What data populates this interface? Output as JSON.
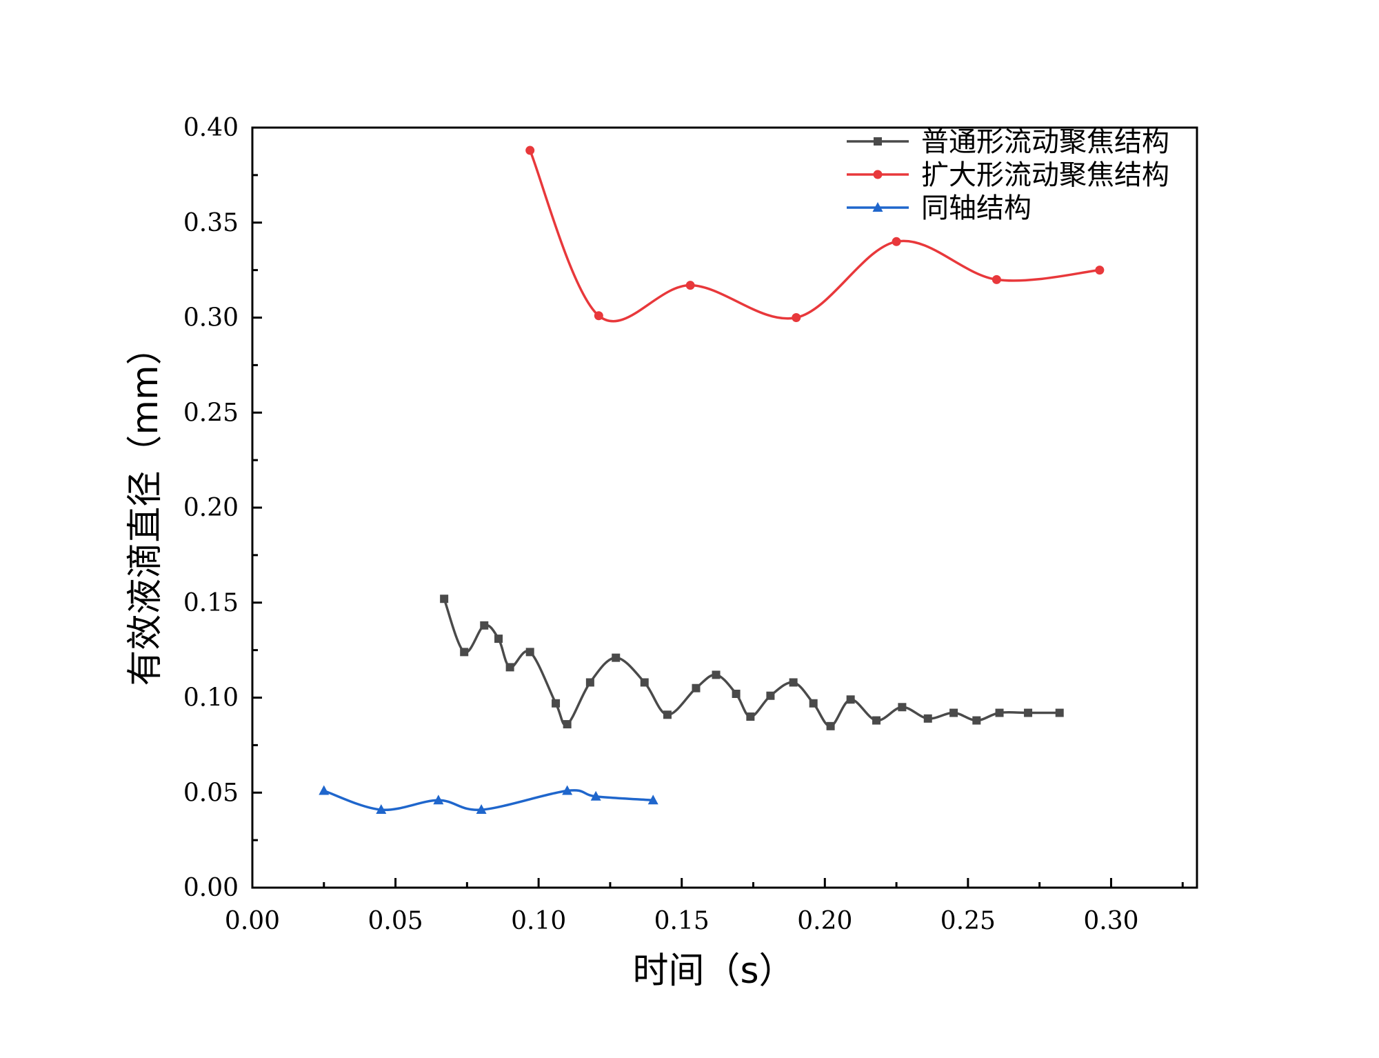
{
  "chart_data": {
    "type": "scatter",
    "xlabel": "时间（s）",
    "ylabel": "有效液滴直径（mm）",
    "xlim": [
      0,
      0.33
    ],
    "ylim": [
      0,
      0.4
    ],
    "xticks": [
      "0.00",
      "0.05",
      "0.10",
      "0.15",
      "0.20",
      "0.25",
      "0.30"
    ],
    "yticks": [
      "0.00",
      "0.05",
      "0.10",
      "0.15",
      "0.20",
      "0.25",
      "0.30",
      "0.35",
      "0.40"
    ],
    "grid": false,
    "legend_position": "top-right",
    "series": [
      {
        "name": "普通形流动聚焦结构",
        "color": "#4a4a4a",
        "marker": "square",
        "x": [
          0.067,
          0.074,
          0.081,
          0.086,
          0.09,
          0.097,
          0.106,
          0.11,
          0.118,
          0.127,
          0.137,
          0.145,
          0.155,
          0.162,
          0.169,
          0.174,
          0.181,
          0.189,
          0.196,
          0.202,
          0.209,
          0.218,
          0.227,
          0.236,
          0.245,
          0.253,
          0.261,
          0.271,
          0.282
        ],
        "y": [
          0.152,
          0.124,
          0.138,
          0.131,
          0.116,
          0.124,
          0.097,
          0.086,
          0.108,
          0.121,
          0.108,
          0.091,
          0.105,
          0.112,
          0.102,
          0.09,
          0.101,
          0.108,
          0.097,
          0.085,
          0.099,
          0.088,
          0.095,
          0.089,
          0.092,
          0.088,
          0.092,
          0.092,
          0.092
        ]
      },
      {
        "name": "扩大形流动聚焦结构",
        "color": "#e8383b",
        "marker": "circle",
        "x": [
          0.097,
          0.121,
          0.153,
          0.19,
          0.225,
          0.26,
          0.296
        ],
        "y": [
          0.388,
          0.301,
          0.317,
          0.3,
          0.34,
          0.32,
          0.325
        ]
      },
      {
        "name": "同轴结构",
        "color": "#1f66cc",
        "marker": "triangle",
        "x": [
          0.025,
          0.045,
          0.065,
          0.08,
          0.11,
          0.12,
          0.14
        ],
        "y": [
          0.051,
          0.041,
          0.046,
          0.041,
          0.051,
          0.048,
          0.046
        ]
      }
    ]
  }
}
